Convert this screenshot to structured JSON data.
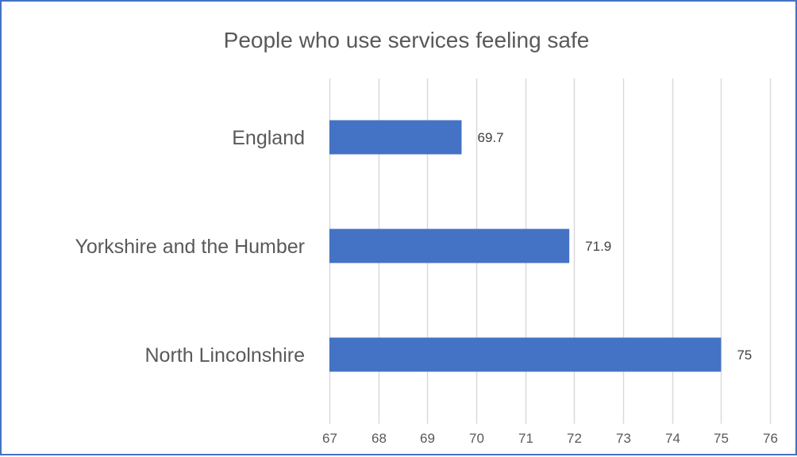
{
  "chart_data": {
    "type": "bar",
    "orientation": "horizontal",
    "title": "People who use services feeling safe",
    "categories": [
      "England",
      "Yorkshire and the Humber",
      "North Lincolnshire"
    ],
    "values": [
      69.7,
      71.9,
      75
    ],
    "data_labels": [
      "69.7",
      "71.9",
      "75"
    ],
    "xlim": [
      67,
      76
    ],
    "x_ticks": [
      "67",
      "68",
      "69",
      "70",
      "71",
      "72",
      "73",
      "74",
      "75",
      "76"
    ],
    "grid": true,
    "legend": "none",
    "bar_color": "#4472c4",
    "grid_color": "#d9d9d9",
    "border_color": "#4472c4"
  }
}
